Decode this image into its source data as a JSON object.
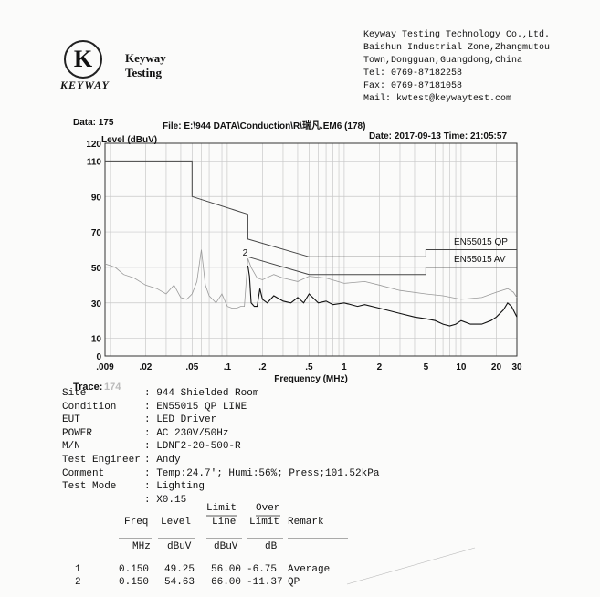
{
  "company": {
    "logo_letter": "K",
    "logo_word": "KEYWAY",
    "name_line1": "Keyway",
    "name_line2": "Testing",
    "contact": [
      "Keyway Testing Technology Co.,Ltd.",
      "Baishun Industrial Zone,Zhangmutou",
      "Town,Dongguan,Guangdong,China",
      "Tel: 0769-87182258",
      "Fax: 0769-87181058",
      "Mail: kwtest@keywaytest.com"
    ]
  },
  "header": {
    "data_no": "Data: 175",
    "file": "File: E:\\944 DATA\\Conduction\\R\\瑞凡.EM6  (178)",
    "datetime": "Date: 2017-09-13  Time: 21:05:57"
  },
  "trace": {
    "label": "Trace:",
    "value": "174"
  },
  "chart_data": {
    "type": "line",
    "ylabel": "Level (dBuV)",
    "xlabel": "Frequency (MHz)",
    "x_scale": "log",
    "xlim": [
      0.009,
      30
    ],
    "ylim": [
      0,
      120
    ],
    "x_ticks": [
      0.009,
      0.02,
      0.05,
      0.1,
      0.2,
      0.5,
      1,
      2,
      5,
      10,
      20,
      30
    ],
    "x_tick_labels": [
      ".009",
      ".02",
      ".05",
      ".1",
      ".2",
      ".5",
      "1",
      "2",
      "5",
      "10",
      "20",
      "30"
    ],
    "y_ticks": [
      0,
      10,
      30,
      50,
      70,
      90,
      110,
      120
    ],
    "y_tick_labels": [
      "0",
      "10",
      "30",
      "50",
      "70",
      "90",
      "110",
      "120"
    ],
    "grid": true,
    "limit_lines": [
      {
        "name": "EN55015 QP",
        "points": [
          [
            0.009,
            110
          ],
          [
            0.05,
            110
          ],
          [
            0.05,
            90
          ],
          [
            0.15,
            80
          ],
          [
            0.15,
            66
          ],
          [
            0.5,
            56
          ],
          [
            5,
            56
          ],
          [
            5,
            60
          ],
          [
            30,
            60
          ]
        ]
      },
      {
        "name": "EN55015 AV",
        "points": [
          [
            0.15,
            56
          ],
          [
            0.5,
            46
          ],
          [
            5,
            46
          ],
          [
            5,
            50
          ],
          [
            30,
            50
          ]
        ]
      }
    ],
    "series": [
      {
        "name": "",
        "color": "#9a9a9a",
        "points": [
          [
            0.009,
            52
          ],
          [
            0.011,
            50
          ],
          [
            0.013,
            46
          ],
          [
            0.016,
            44
          ],
          [
            0.02,
            40
          ],
          [
            0.025,
            38
          ],
          [
            0.03,
            35
          ],
          [
            0.035,
            40
          ],
          [
            0.04,
            33
          ],
          [
            0.045,
            32
          ],
          [
            0.05,
            35
          ],
          [
            0.055,
            42
          ],
          [
            0.06,
            60
          ],
          [
            0.065,
            40
          ],
          [
            0.07,
            34
          ],
          [
            0.08,
            30
          ],
          [
            0.09,
            35
          ],
          [
            0.1,
            28
          ],
          [
            0.11,
            27
          ],
          [
            0.12,
            27
          ],
          [
            0.13,
            28
          ],
          [
            0.14,
            28
          ],
          [
            0.15,
            55
          ],
          [
            0.16,
            50
          ],
          [
            0.18,
            44
          ],
          [
            0.2,
            43
          ],
          [
            0.25,
            46
          ],
          [
            0.3,
            44
          ],
          [
            0.4,
            42
          ],
          [
            0.5,
            45
          ],
          [
            0.7,
            44
          ],
          [
            1,
            41
          ],
          [
            1.5,
            42
          ],
          [
            2,
            40
          ],
          [
            3,
            37
          ],
          [
            5,
            35
          ],
          [
            7,
            34
          ],
          [
            10,
            32
          ],
          [
            15,
            33
          ],
          [
            20,
            36
          ],
          [
            25,
            38
          ],
          [
            28,
            36
          ],
          [
            30,
            33
          ]
        ]
      },
      {
        "name": "",
        "color": "#111111",
        "points": [
          [
            0.15,
            51
          ],
          [
            0.155,
            45
          ],
          [
            0.16,
            30
          ],
          [
            0.17,
            28
          ],
          [
            0.18,
            28
          ],
          [
            0.19,
            38
          ],
          [
            0.2,
            32
          ],
          [
            0.22,
            30
          ],
          [
            0.25,
            34
          ],
          [
            0.3,
            31
          ],
          [
            0.35,
            30
          ],
          [
            0.4,
            33
          ],
          [
            0.45,
            30
          ],
          [
            0.5,
            35
          ],
          [
            0.6,
            30
          ],
          [
            0.7,
            31
          ],
          [
            0.8,
            29
          ],
          [
            1,
            30
          ],
          [
            1.3,
            28
          ],
          [
            1.5,
            29
          ],
          [
            2,
            27
          ],
          [
            3,
            24
          ],
          [
            4,
            22
          ],
          [
            5,
            21
          ],
          [
            6,
            20
          ],
          [
            7,
            18
          ],
          [
            8,
            17
          ],
          [
            9,
            18
          ],
          [
            10,
            20
          ],
          [
            12,
            18
          ],
          [
            15,
            18
          ],
          [
            18,
            20
          ],
          [
            20,
            22
          ],
          [
            23,
            26
          ],
          [
            25,
            30
          ],
          [
            27,
            28
          ],
          [
            30,
            22
          ]
        ]
      }
    ],
    "markers": [
      {
        "label": "2",
        "x": 0.15,
        "y": 54.63
      }
    ]
  },
  "info": [
    {
      "label": "Site",
      "value": ": 944 Shielded Room"
    },
    {
      "label": "Condition",
      "value": ": EN55015 QP  LINE"
    },
    {
      "label": "EUT",
      "value": ": LED Driver"
    },
    {
      "label": "POWER",
      "value": ": AC 230V/50Hz"
    },
    {
      "label": "M/N",
      "value": ": LDNF2-20-500-R"
    },
    {
      "label": "Test Engineer",
      "value": ": Andy"
    },
    {
      "label": "Comment",
      "value": ": Temp:24.7'; Humi:56%; Press;101.52kPa"
    },
    {
      "label": "Test Mode",
      "value": ": Lighting"
    },
    {
      "label": "",
      "value": ": X0.15"
    }
  ],
  "table": {
    "headers_top": {
      "limit": "Limit",
      "over": "Over"
    },
    "headers": {
      "freq": "Freq",
      "level": "Level",
      "line": "Line",
      "limit": "Limit",
      "remark": "Remark"
    },
    "units": {
      "freq": "MHz",
      "level": "dBuV",
      "line": "dBuV",
      "limit": "dB"
    },
    "rows": [
      {
        "no": "1",
        "freq": "0.150",
        "level": "49.25",
        "line": "56.00",
        "over": "-6.75",
        "remark": "Average"
      },
      {
        "no": "2",
        "freq": "0.150",
        "level": "54.63",
        "line": "66.00",
        "over": "-11.37",
        "remark": "QP"
      }
    ]
  }
}
